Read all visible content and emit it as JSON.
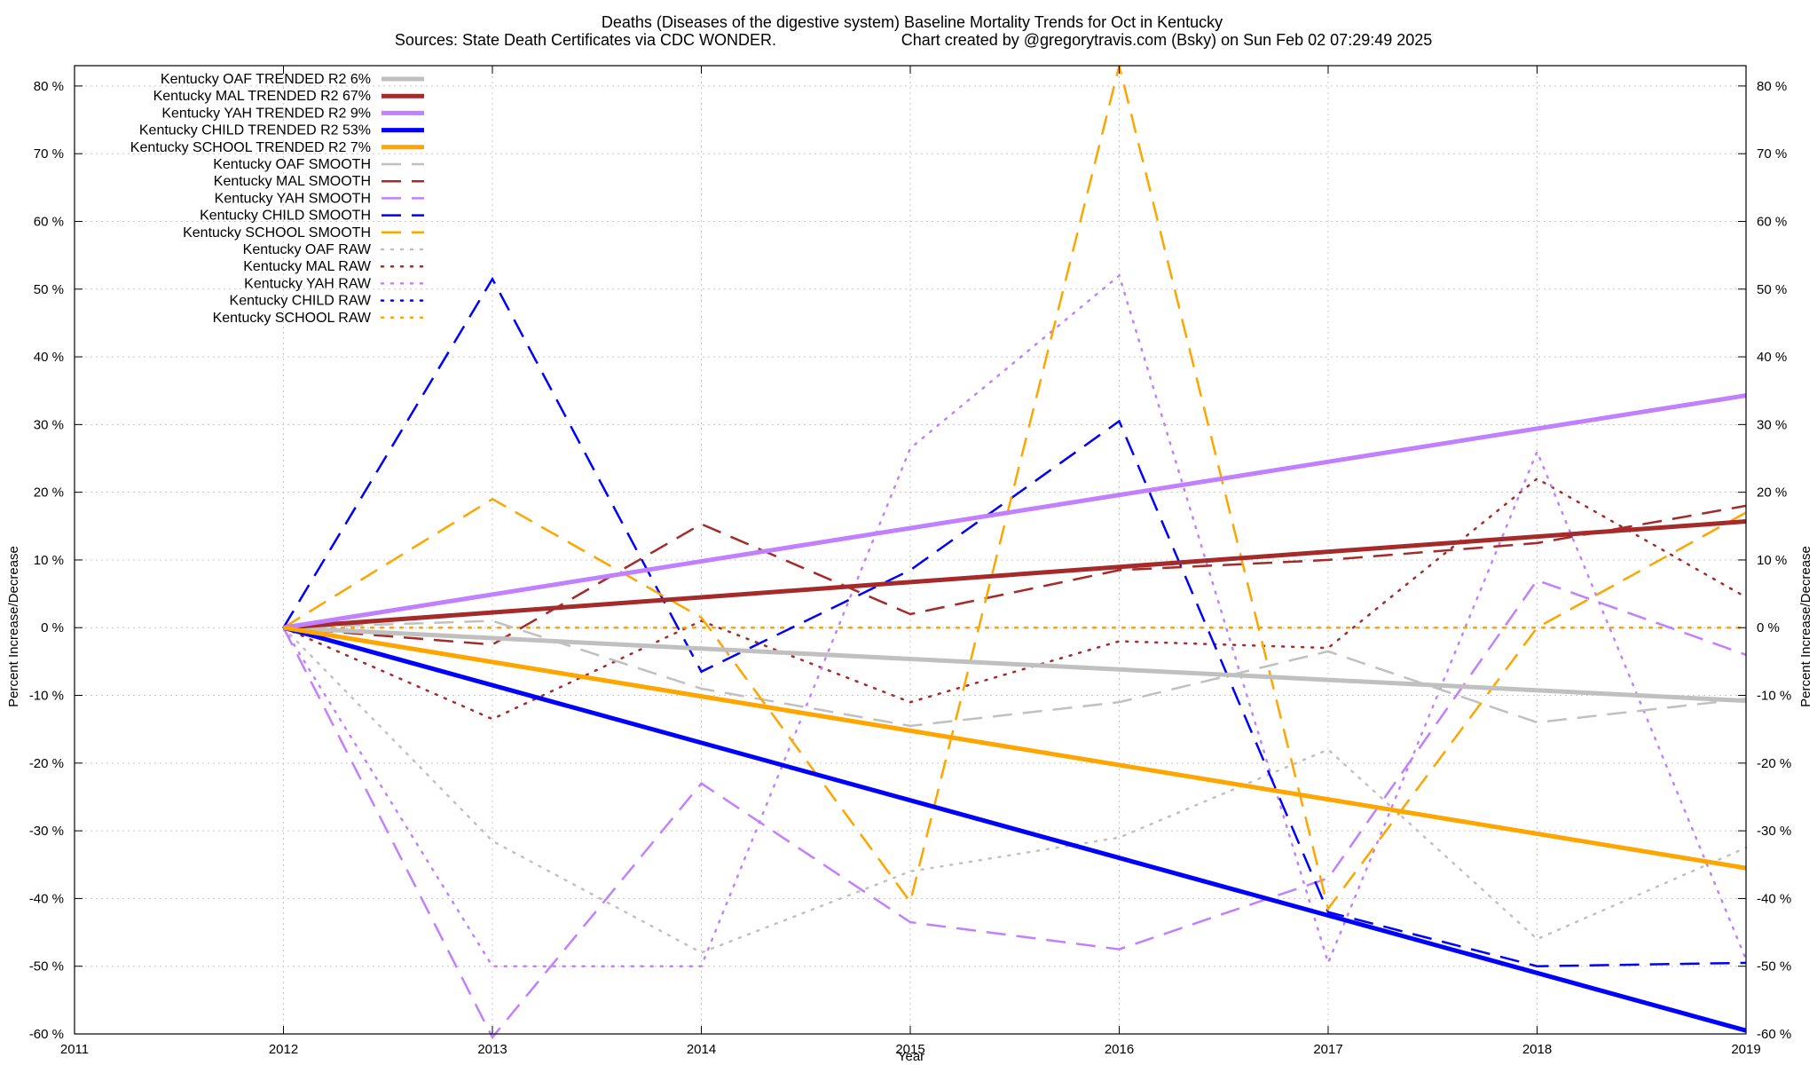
{
  "chart_data": {
    "type": "line",
    "title": "Deaths (Diseases of the digestive system)  Baseline Mortality Trends for Oct in Kentucky",
    "subtitle_left": "Sources: State Death Certificates via CDC WONDER.",
    "subtitle_right": "Chart created by @gregorytravis.com (Bsky) on Sun Feb 02 07:29:49 2025",
    "xlabel": "Year",
    "ylabel_left": "Percent Increase/Decrease",
    "ylabel_right": "Percent Increase/Decrease",
    "xlim": [
      2011,
      2019
    ],
    "ylim": [
      -60,
      83
    ],
    "x_ticks": [
      "2011",
      "2012",
      "2013",
      "2014",
      "2015",
      "2016",
      "2017",
      "2018",
      "2019"
    ],
    "y_ticks": [
      "-60 %",
      "-50 %",
      "-40 %",
      "-30 %",
      "-20 %",
      "-10 %",
      "0 %",
      "10 %",
      "20 %",
      "30 %",
      "40 %",
      "50 %",
      "60 %",
      "70 %",
      "80 %"
    ],
    "grid": true,
    "legend_position": "top-left",
    "series": [
      {
        "name": "Kentucky OAF TRENDED R2  6%",
        "style": "solid",
        "color": "#c0c0c0",
        "x": [
          2012,
          2019
        ],
        "y": [
          0,
          -10.8
        ]
      },
      {
        "name": "Kentucky MAL TRENDED R2  67%",
        "style": "solid",
        "color": "#a52a2a",
        "x": [
          2012,
          2019
        ],
        "y": [
          0,
          15.7
        ]
      },
      {
        "name": "Kentucky YAH TRENDED R2  9%",
        "style": "solid",
        "color": "#c080ff",
        "x": [
          2012,
          2019
        ],
        "y": [
          0,
          34.3
        ]
      },
      {
        "name": "Kentucky CHILD TRENDED R2  53%",
        "style": "solid",
        "color": "#0000ff",
        "x": [
          2012,
          2019
        ],
        "y": [
          0,
          -59.5
        ]
      },
      {
        "name": "Kentucky SCHOOL TRENDED R2  7%",
        "style": "solid",
        "color": "#ffa500",
        "x": [
          2012,
          2019
        ],
        "y": [
          0,
          -35.5
        ]
      },
      {
        "name": "Kentucky OAF SMOOTH",
        "style": "dashed",
        "color": "#c0c0c0",
        "x": [
          2012,
          2013,
          2014,
          2015,
          2016,
          2017,
          2018,
          2019
        ],
        "y": [
          0,
          1,
          -9,
          -14.5,
          -11,
          -3.5,
          -14,
          -10.5
        ]
      },
      {
        "name": "Kentucky MAL SMOOTH",
        "style": "dashed",
        "color": "#a52a2a",
        "x": [
          2012,
          2013,
          2014,
          2015,
          2016,
          2017,
          2018,
          2019
        ],
        "y": [
          0,
          -2.5,
          15.3,
          2,
          8.5,
          10,
          12.5,
          18
        ]
      },
      {
        "name": "Kentucky YAH SMOOTH",
        "style": "dashed",
        "color": "#c080ff",
        "x": [
          2012,
          2013,
          2014,
          2015,
          2016,
          2017,
          2018,
          2019
        ],
        "y": [
          0,
          -60.5,
          -23,
          -43.5,
          -47.5,
          -37,
          7,
          -4
        ]
      },
      {
        "name": "Kentucky CHILD SMOOTH",
        "style": "dashed",
        "color": "#0000ff",
        "x": [
          2012,
          2013,
          2014,
          2015,
          2016,
          2017,
          2018,
          2019
        ],
        "y": [
          0,
          51.5,
          -6.5,
          8.5,
          30.5,
          -42,
          -50,
          -49.5
        ]
      },
      {
        "name": "Kentucky SCHOOL SMOOTH",
        "style": "dashed",
        "color": "#ffa500",
        "x": [
          2012,
          2013,
          2014,
          2015,
          2016,
          2017,
          2018,
          2019
        ],
        "y": [
          0,
          19,
          1.5,
          -40.5,
          83,
          -41.5,
          0,
          17
        ]
      },
      {
        "name": "Kentucky OAF RAW",
        "style": "dotted",
        "color": "#c0c0c0",
        "x": [
          2012,
          2013,
          2014,
          2015,
          2016,
          2017,
          2018,
          2019
        ],
        "y": [
          0,
          -31.5,
          -48,
          -36,
          -31,
          -18,
          -46,
          -32.5
        ]
      },
      {
        "name": "Kentucky MAL RAW",
        "style": "dotted",
        "color": "#a52a2a",
        "x": [
          2012,
          2013,
          2014,
          2015,
          2016,
          2017,
          2018,
          2019
        ],
        "y": [
          0,
          -13.5,
          1,
          -11,
          -2,
          -3,
          22,
          4.5
        ]
      },
      {
        "name": "Kentucky YAH RAW",
        "style": "dotted",
        "color": "#c080ff",
        "x": [
          2012,
          2013,
          2014,
          2015,
          2016,
          2017,
          2018,
          2019
        ],
        "y": [
          0,
          -50,
          -50,
          26.5,
          52,
          -49.5,
          26,
          -49
        ]
      },
      {
        "name": "Kentucky CHILD RAW",
        "style": "dotted",
        "color": "#0000ff",
        "x": [
          2012,
          2013,
          2014,
          2015,
          2016,
          2017,
          2018,
          2019
        ],
        "y": [
          0,
          0,
          0,
          0,
          0,
          0,
          0,
          0
        ]
      },
      {
        "name": "Kentucky SCHOOL RAW",
        "style": "dotted",
        "color": "#ffa500",
        "x": [
          2012,
          2013,
          2014,
          2015,
          2016,
          2017,
          2018,
          2019
        ],
        "y": [
          0,
          0,
          0,
          0,
          0,
          0,
          0,
          0
        ]
      }
    ]
  }
}
